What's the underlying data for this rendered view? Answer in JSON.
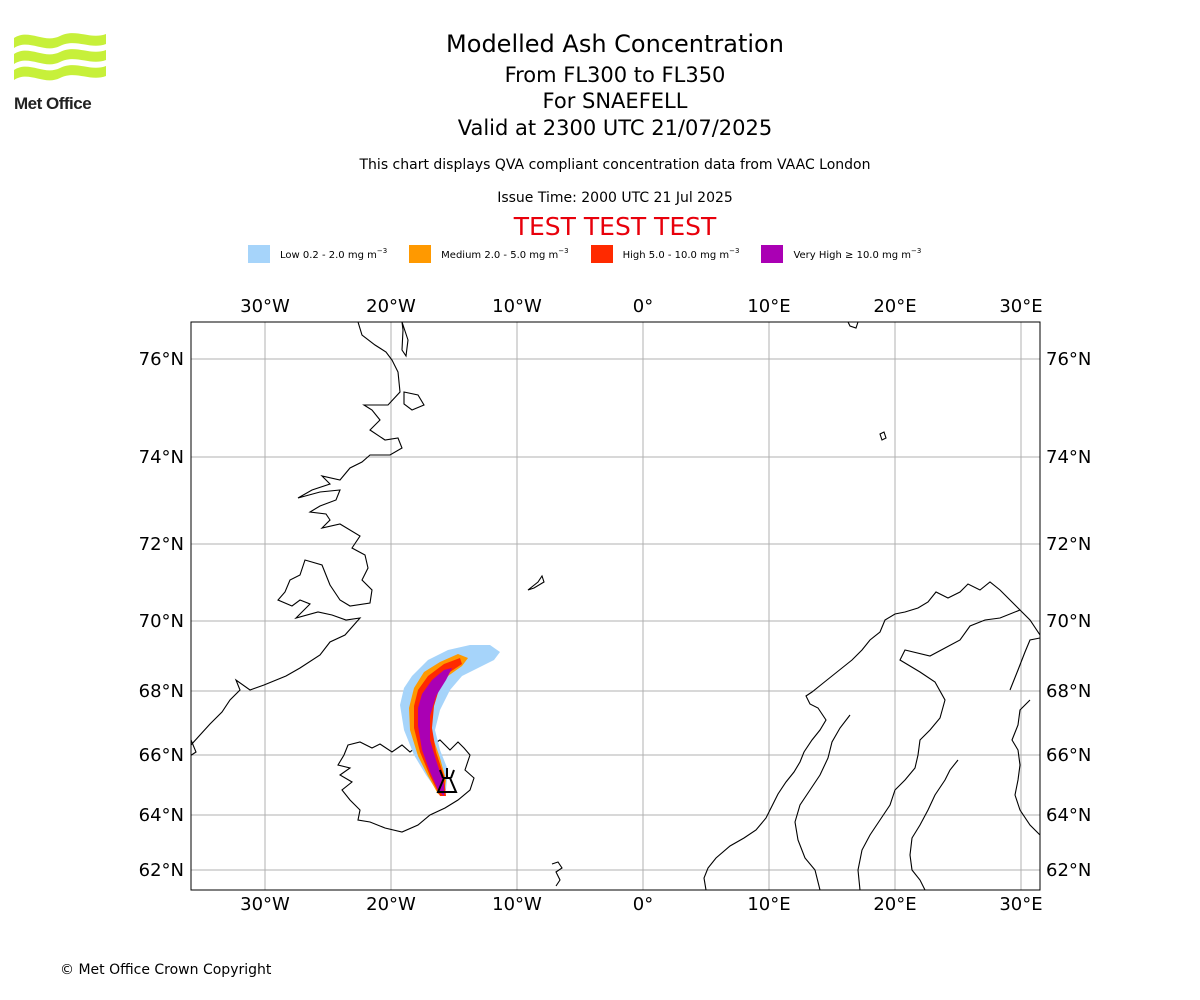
{
  "header": {
    "title": "Modelled Ash Concentration",
    "level_range": "From FL300 to FL350",
    "volcano": "For SNAEFELL",
    "valid": "Valid at 2300 UTC 21/07/2025",
    "info": "This chart displays QVA compliant concentration data from VAAC London",
    "issue": "Issue Time: 2000 UTC 21 Jul 2025",
    "test_banner": "TEST TEST TEST"
  },
  "logo": {
    "name": "Met Office"
  },
  "legend": [
    {
      "label": "Low 0.2 - 2.0 mg m",
      "unit_exp": "−3",
      "color": "#a6d4fa"
    },
    {
      "label": "Medium 2.0 - 5.0 mg m",
      "unit_exp": "−3",
      "color": "#ff9900"
    },
    {
      "label": "High 5.0 - 10.0 mg m",
      "unit_exp": "−3",
      "color": "#ff2a00"
    },
    {
      "label": "Very High  ≥  10.0 mg m",
      "unit_exp": "−3",
      "color": "#aa00b4"
    }
  ],
  "map": {
    "lon_ticks": [
      "30°W",
      "20°W",
      "10°W",
      "0°",
      "10°E",
      "20°E",
      "30°E"
    ],
    "lat_ticks": [
      "76°N",
      "74°N",
      "72°N",
      "70°N",
      "68°N",
      "66°N",
      "64°N",
      "62°N"
    ],
    "volcano_marker": "volcano-symbol"
  },
  "footer": {
    "copyright": "© Met Office Crown Copyright"
  }
}
